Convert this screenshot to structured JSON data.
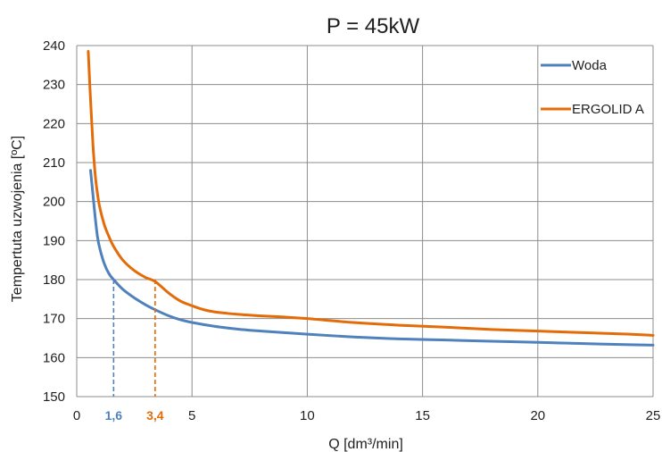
{
  "chart_data": {
    "type": "line",
    "title": "P = 45kW",
    "xlabel": "Q [dm³/min]",
    "ylabel": "Tempertuta uzwojenia [ºC]",
    "xlim": [
      0,
      25
    ],
    "ylim": [
      150,
      240
    ],
    "x_ticks": [
      0,
      5,
      10,
      15,
      20,
      25
    ],
    "y_ticks": [
      150,
      160,
      170,
      180,
      190,
      200,
      210,
      220,
      230,
      240
    ],
    "grid": true,
    "legend_position": "top-right",
    "series": [
      {
        "name": "Woda",
        "color": "#4f81bd",
        "x": [
          0.6,
          0.7,
          0.8,
          0.9,
          1.0,
          1.2,
          1.4,
          1.6,
          2.0,
          2.5,
          3.0,
          3.5,
          4.0,
          4.5,
          5.0,
          6.0,
          7.0,
          8.0,
          9.0,
          10.0,
          12.0,
          14.0,
          16.0,
          18.0,
          20.0,
          22.0,
          24.0,
          25.0
        ],
        "values": [
          208,
          202,
          196,
          191,
          188,
          184,
          181.5,
          180,
          177.5,
          175.3,
          173.5,
          172,
          170.7,
          169.7,
          169,
          168,
          167.3,
          166.8,
          166.4,
          166,
          165.3,
          164.8,
          164.5,
          164.2,
          163.9,
          163.6,
          163.3,
          163.2
        ]
      },
      {
        "name": "ERGOLID A",
        "color": "#e36c09",
        "x": [
          0.5,
          0.6,
          0.7,
          0.8,
          0.9,
          1.0,
          1.2,
          1.4,
          1.6,
          2.0,
          2.5,
          3.0,
          3.4,
          4.0,
          4.5,
          5.0,
          5.5,
          6.0,
          7.0,
          8.0,
          9.0,
          10.0,
          12.0,
          14.0,
          16.0,
          18.0,
          20.0,
          22.0,
          24.0,
          25.0
        ],
        "values": [
          238.5,
          226,
          215,
          207,
          202,
          198.5,
          194,
          191,
          188.5,
          185,
          182.3,
          180.5,
          179.5,
          176.5,
          174.5,
          173.3,
          172.3,
          171.7,
          171.1,
          170.7,
          170.4,
          170,
          169,
          168.3,
          167.8,
          167.2,
          166.8,
          166.4,
          166,
          165.7
        ]
      }
    ],
    "annotations": [
      {
        "label": "1,6",
        "x": 1.6,
        "y": 180,
        "color": "#4f81bd"
      },
      {
        "label": "3,4",
        "x": 3.4,
        "y": 180,
        "color": "#e36c09"
      }
    ]
  }
}
